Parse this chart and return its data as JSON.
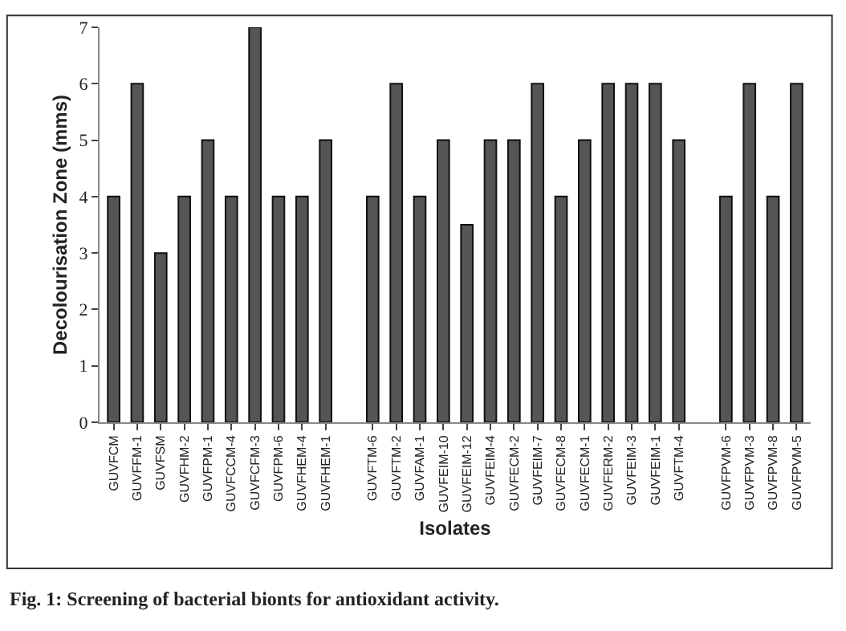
{
  "chart_data": {
    "type": "bar",
    "xlabel": "Isolates",
    "ylabel": "Decolourisation Zone (mms)",
    "categories": [
      "GUVFCM",
      "GUVFFM-1",
      "GUVFSM",
      "GUVFHM-2",
      "GUVFPM-1",
      "GUVFCCM-4",
      "GUVFCFM-3",
      "GUVFPM-6",
      "GUVFHEM-4",
      "GUVFHEM-1",
      null,
      "GUVFTM-6",
      "GUVFTM-2",
      "GUVFAM-1",
      "GUVFEIM-10",
      "GUVFEIM-12",
      "GUVFEIM-4",
      "GUVFECM-2",
      "GUVFEIM-7",
      "GUVFECM-8",
      "GUVFECM-1",
      "GUVFERM-2",
      "GUVFEIM-3",
      "GUVFEIM-1",
      "GUVFTM-4",
      null,
      "GUVFPVM-6",
      "GUVFPVM-3",
      "GUVFPVM-8",
      "GUVFPVM-5"
    ],
    "values": [
      4,
      6,
      3,
      4,
      5,
      4,
      7,
      4,
      4,
      5,
      null,
      4,
      6,
      4,
      5,
      3.5,
      5,
      5,
      6,
      4,
      5,
      6,
      6,
      6,
      5,
      null,
      4,
      6,
      4,
      6
    ],
    "color": "#555555",
    "ylim": [
      0,
      7
    ],
    "yticks": [
      0,
      1,
      2,
      3,
      4,
      5,
      6,
      7
    ],
    "annotations": [
      "Fig. 1: Screening of bacterial bionts for antioxidant activity."
    ]
  }
}
